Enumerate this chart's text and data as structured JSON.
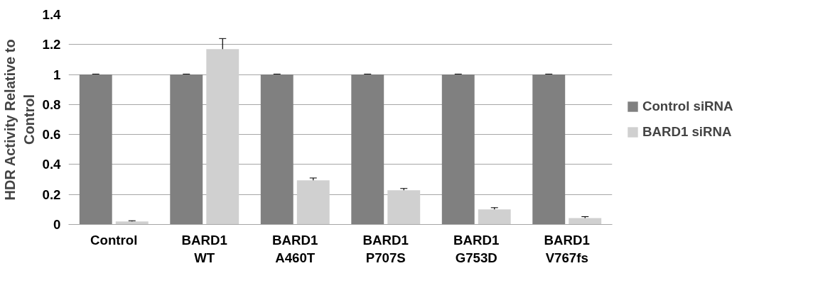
{
  "chart_data": {
    "type": "bar",
    "ylabel": "HDR Activity Relative to\nControl",
    "categories": [
      "Control",
      "BARD1\nWT",
      "BARD1\nA460T",
      "BARD1\nP707S",
      "BARD1\nG753D",
      "BARD1\nV767fs"
    ],
    "series": [
      {
        "name": "Control siRNA",
        "color": "#808080",
        "values": [
          1,
          1,
          1,
          1,
          1,
          1
        ],
        "errors": [
          0.003,
          0.003,
          0.003,
          0.003,
          0.003,
          0.003
        ]
      },
      {
        "name": "BARD1 siRNA",
        "color": "#d0d0d0",
        "values": [
          0.02,
          1.17,
          0.295,
          0.228,
          0.1,
          0.042
        ],
        "errors": [
          0.005,
          0.07,
          0.015,
          0.012,
          0.012,
          0.01
        ]
      }
    ],
    "ylim": [
      0,
      1.4
    ],
    "yticks": [
      0,
      {
        "value": 0.2,
        "label": "0.2"
      },
      {
        "value": 0.4,
        "label": "0.4"
      },
      {
        "value": 0.6,
        "label": "0.6"
      },
      {
        "value": 0.8,
        "label": "0.8"
      },
      1,
      {
        "value": 1.2,
        "label": "1.2"
      },
      {
        "value": 1.4,
        "label": "1.4"
      }
    ],
    "grid": "y",
    "legend": "right"
  }
}
